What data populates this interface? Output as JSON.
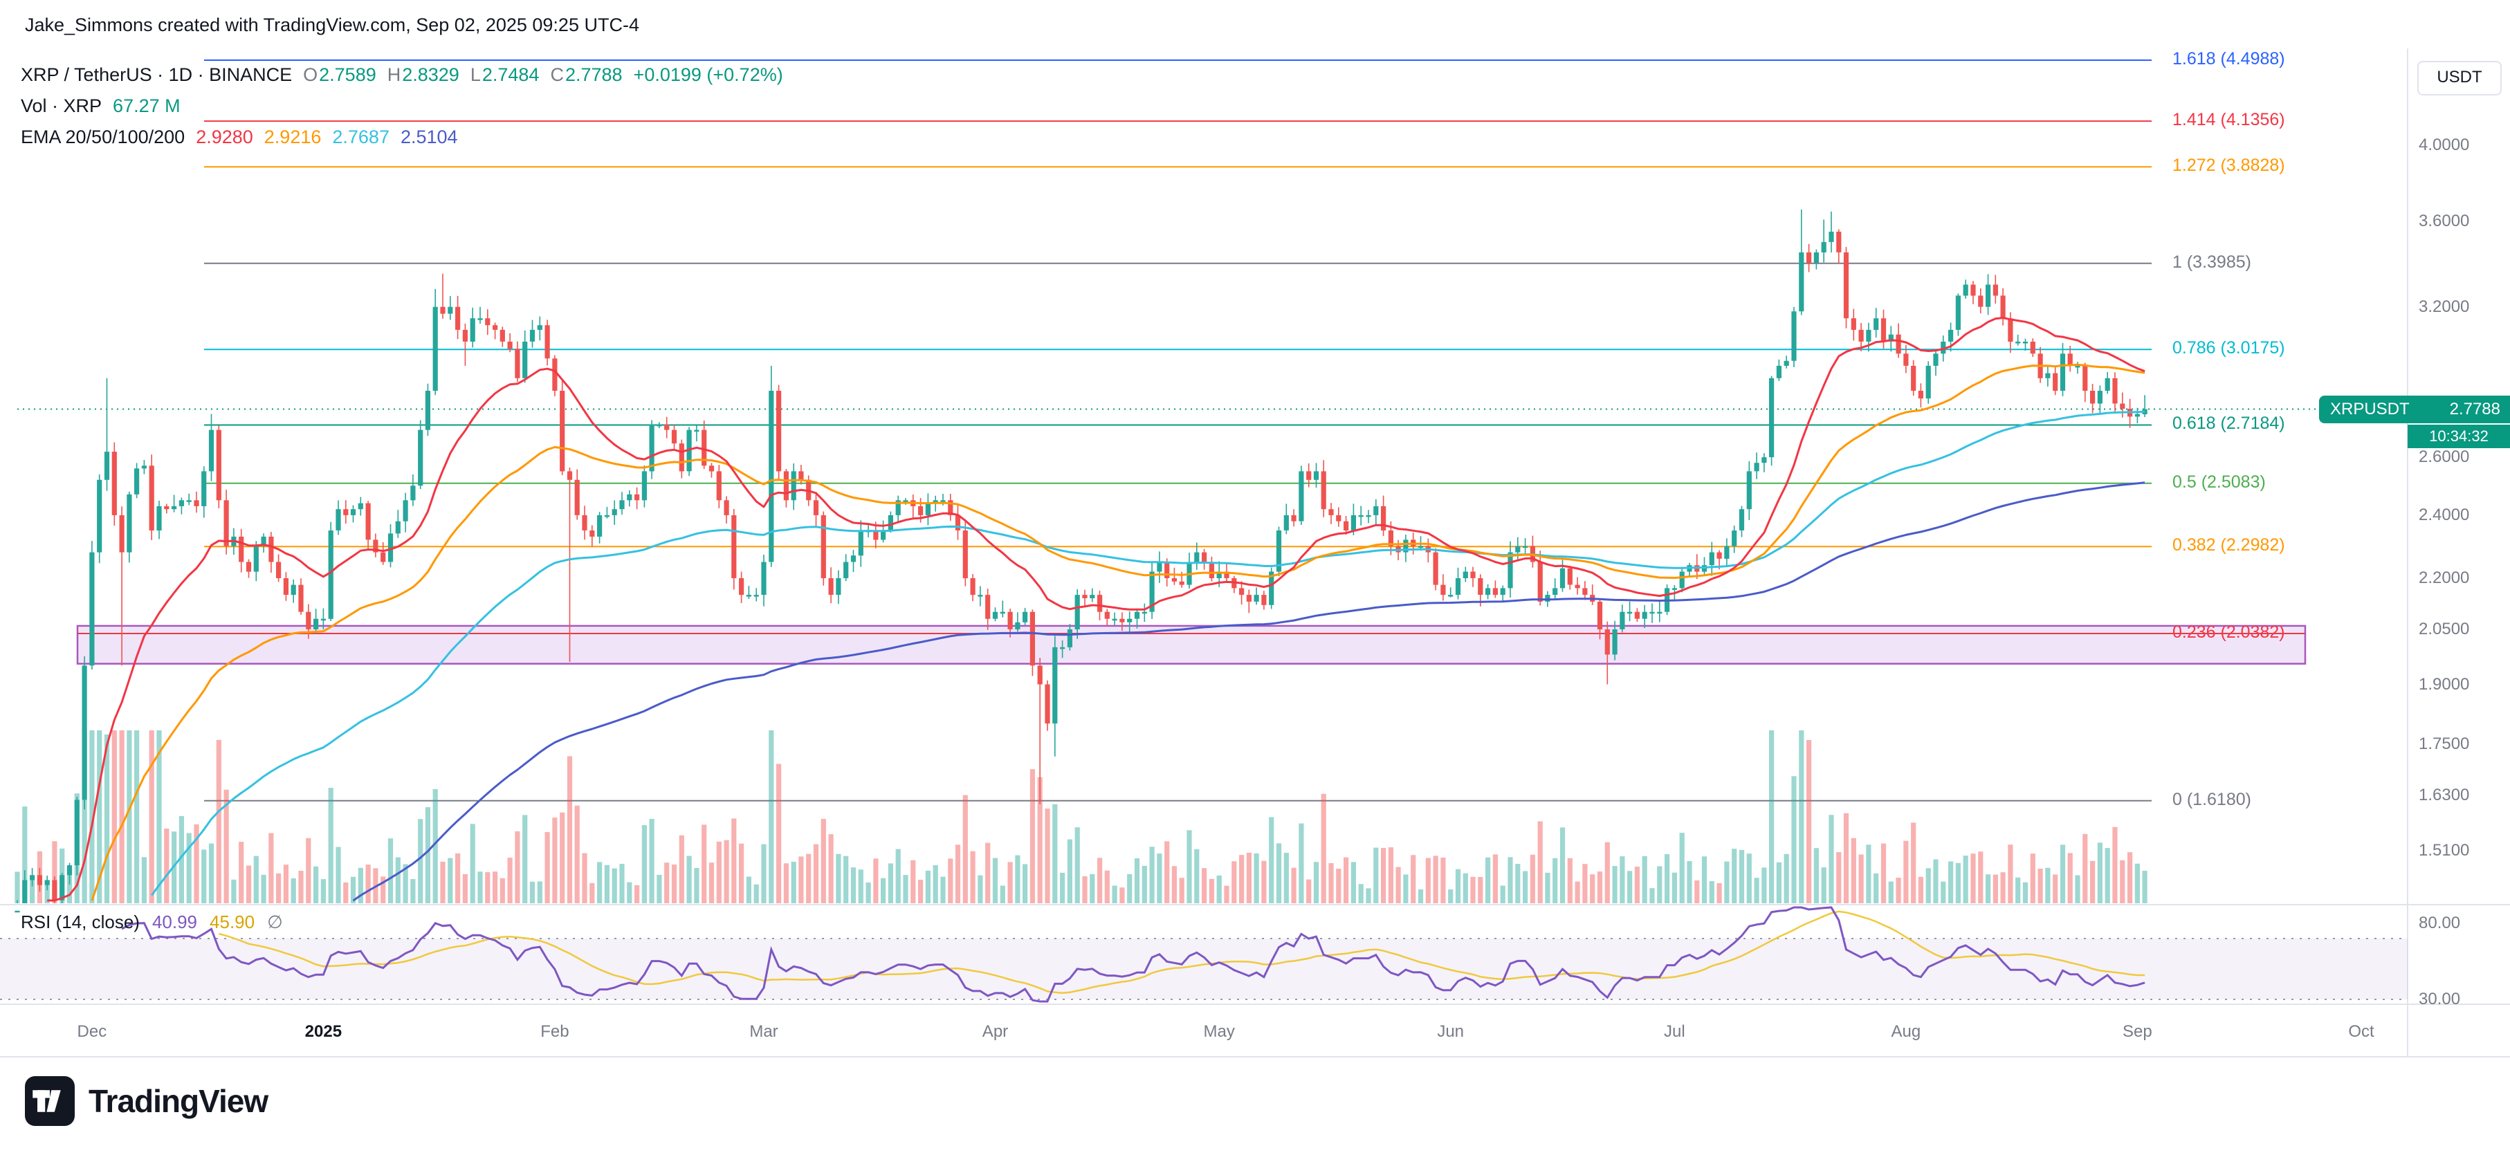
{
  "attribution": "Jake_Simmons created with TradingView.com, Sep 02, 2025 09:25 UTC-4",
  "legend": {
    "symbol": "XRP / TetherUS · 1D · BINANCE",
    "ohlc": {
      "o_label": "O",
      "o": "2.7589",
      "h_label": "H",
      "h": "2.8329",
      "l_label": "L",
      "l": "2.7484",
      "c_label": "C",
      "c": "2.7788",
      "change": "+0.0199 (+0.72%)",
      "value_color": "#089981"
    },
    "volume": {
      "label": "Vol · XRP",
      "value": "67.27 M",
      "value_color": "#089981"
    },
    "ema": {
      "label": "EMA 20/50/100/200",
      "values": [
        "2.9280",
        "2.9216",
        "2.7687",
        "2.5104"
      ],
      "colors": [
        "#f23645",
        "#ff9800",
        "#35c1e0",
        "#4a5bc9"
      ]
    }
  },
  "rsi_legend": {
    "title": "RSI (14, close)",
    "value": "40.99",
    "ma_value": "45.90",
    "empty": "∅",
    "value_color": "#7e57c2",
    "ma_color": "#d8a500"
  },
  "axis": {
    "currency": "USDT"
  },
  "price_badge": {
    "symbol": "XRPUSDT",
    "price": "2.7788",
    "countdown": "10:34:32",
    "color": "#089981"
  },
  "footer": {
    "brand": "TradingView"
  },
  "chart_data": {
    "type": "candlestick",
    "title": "XRP / TetherUS · 1D · BINANCE",
    "symbol": "XRPUSDT",
    "exchange": "BINANCE",
    "timeframe": "1D",
    "scale": "log",
    "start_date": "2024-11-21",
    "last_candle": {
      "open": 2.7589,
      "high": 2.8329,
      "low": 2.7484,
      "close": 2.7788,
      "change": "+0.0199 (+0.72%)"
    },
    "volume_display": "67.27 M",
    "colors": {
      "up": "#26a69a",
      "down": "#ef5350",
      "vol_up": "rgba(38,166,154,0.45)",
      "vol_down": "rgba(239,83,80,0.45)"
    },
    "closes": [
      1.39,
      1.45,
      1.46,
      1.44,
      1.45,
      1.41,
      1.46,
      1.48,
      1.62,
      1.95,
      2.28,
      2.52,
      2.62,
      2.4,
      2.28,
      2.47,
      2.56,
      2.57,
      2.35,
      2.43,
      2.42,
      2.43,
      2.45,
      2.45,
      2.43,
      2.55,
      2.7,
      2.45,
      2.3,
      2.33,
      2.25,
      2.22,
      2.3,
      2.33,
      2.25,
      2.2,
      2.15,
      2.18,
      2.1,
      2.05,
      2.08,
      2.08,
      2.35,
      2.42,
      2.4,
      2.42,
      2.44,
      2.32,
      2.28,
      2.25,
      2.34,
      2.38,
      2.45,
      2.5,
      2.7,
      2.85,
      3.2,
      3.17,
      3.2,
      3.1,
      3.05,
      3.15,
      3.15,
      3.12,
      3.1,
      3.05,
      3.02,
      2.9,
      3.05,
      3.1,
      3.12,
      2.98,
      2.85,
      2.55,
      2.52,
      2.4,
      2.35,
      2.33,
      2.4,
      2.4,
      2.42,
      2.45,
      2.47,
      2.45,
      2.55,
      2.72,
      2.72,
      2.7,
      2.65,
      2.55,
      2.7,
      2.7,
      2.57,
      2.55,
      2.45,
      2.4,
      2.2,
      2.15,
      2.15,
      2.15,
      2.25,
      2.85,
      2.55,
      2.45,
      2.55,
      2.52,
      2.45,
      2.4,
      2.2,
      2.15,
      2.2,
      2.25,
      2.27,
      2.35,
      2.35,
      2.32,
      2.35,
      2.4,
      2.45,
      2.45,
      2.43,
      2.4,
      2.44,
      2.45,
      2.45,
      2.4,
      2.35,
      2.2,
      2.15,
      2.15,
      2.08,
      2.1,
      2.1,
      2.05,
      2.07,
      2.1,
      1.95,
      1.9,
      1.8,
      2.0,
      2.0,
      2.05,
      2.15,
      2.14,
      2.15,
      2.1,
      2.08,
      2.08,
      2.07,
      2.08,
      2.1,
      2.1,
      2.22,
      2.25,
      2.2,
      2.19,
      2.18,
      2.25,
      2.28,
      2.25,
      2.2,
      2.22,
      2.2,
      2.17,
      2.15,
      2.13,
      2.15,
      2.12,
      2.22,
      2.35,
      2.4,
      2.38,
      2.55,
      2.52,
      2.55,
      2.42,
      2.4,
      2.38,
      2.35,
      2.4,
      2.4,
      2.4,
      2.43,
      2.35,
      2.3,
      2.28,
      2.32,
      2.3,
      2.3,
      2.28,
      2.18,
      2.15,
      2.15,
      2.2,
      2.22,
      2.2,
      2.15,
      2.17,
      2.15,
      2.17,
      2.28,
      2.3,
      2.3,
      2.25,
      2.13,
      2.15,
      2.17,
      2.23,
      2.18,
      2.17,
      2.15,
      2.13,
      2.05,
      1.98,
      2.05,
      2.1,
      2.1,
      2.08,
      2.1,
      2.1,
      2.1,
      2.17,
      2.17,
      2.22,
      2.24,
      2.22,
      2.24,
      2.28,
      2.26,
      2.3,
      2.35,
      2.42,
      2.55,
      2.58,
      2.6,
      2.9,
      2.95,
      2.97,
      3.18,
      3.45,
      3.4,
      3.45,
      3.5,
      3.55,
      3.45,
      3.15,
      3.1,
      3.05,
      3.1,
      3.15,
      3.05,
      3.08,
      3.0,
      2.95,
      2.85,
      2.82,
      2.95,
      3.0,
      3.05,
      3.1,
      3.25,
      3.3,
      3.25,
      3.2,
      3.3,
      3.25,
      3.15,
      3.05,
      3.05,
      3.05,
      3.0,
      2.9,
      2.92,
      2.85,
      3.0,
      2.95,
      2.95,
      2.85,
      2.8,
      2.85,
      2.9,
      2.8,
      2.78,
      2.75,
      2.76,
      2.7788
    ],
    "wick_overrides": {
      "12": {
        "h": 2.9
      },
      "14": {
        "l": 1.95
      },
      "26": {
        "h": 2.76
      },
      "56": {
        "h": 3.28
      },
      "57": {
        "h": 3.35
      },
      "60": {
        "l": 2.95
      },
      "74": {
        "l": 1.96
      },
      "101": {
        "h": 2.95
      },
      "137": {
        "l": 1.61
      },
      "139": {
        "l": 1.72
      },
      "213": {
        "l": 1.9
      },
      "239": {
        "h": 3.66
      },
      "242": {
        "h": 3.61
      },
      "243": {
        "h": 3.65
      },
      "285": {
        "o": 2.7589,
        "h": 2.8329,
        "l": 2.7484,
        "c": 2.7788
      }
    },
    "volume_spikes": [
      9,
      10,
      11,
      12,
      13,
      14,
      74,
      101,
      137,
      239,
      240
    ],
    "emas": [
      {
        "period": 20,
        "color": "#f23645",
        "last": 2.928
      },
      {
        "period": 50,
        "color": "#ff9800",
        "last": 2.9216
      },
      {
        "period": 100,
        "color": "#35c1e0",
        "last": 2.7687
      },
      {
        "period": 200,
        "color": "#4a5bc9",
        "last": 2.5104
      }
    ],
    "fib_levels": [
      {
        "level": "1.618",
        "price": 4.4988,
        "color": "#2962ff"
      },
      {
        "level": "1.414",
        "price": 4.1356,
        "color": "#f23645"
      },
      {
        "level": "1.272",
        "price": 3.8828,
        "color": "#ff9800"
      },
      {
        "level": "1",
        "price": 3.3985,
        "color": "#787b86"
      },
      {
        "level": "0.786",
        "price": 3.0175,
        "color": "#00bcd4"
      },
      {
        "level": "0.618",
        "price": 2.7184,
        "color": "#089981"
      },
      {
        "level": "0.5",
        "price": 2.5083,
        "color": "#4caf50"
      },
      {
        "level": "0.382",
        "price": 2.2982,
        "color": "#ff9800"
      },
      {
        "level": "0.236",
        "price": 2.0382,
        "color": "#f23645"
      },
      {
        "level": "0",
        "price": 1.618,
        "color": "#787b86"
      }
    ],
    "support_zone": {
      "top": 2.06,
      "bottom": 1.955,
      "fill": "rgba(164,89,209,0.16)",
      "border": "rgba(142,36,170,0.75)"
    },
    "price_line": {
      "price": 2.7788,
      "color": "#089981"
    },
    "price_ticks": [
      {
        "value": 4.0,
        "label": "4.0000"
      },
      {
        "value": 3.6,
        "label": "3.6000"
      },
      {
        "value": 3.2,
        "label": "3.2000"
      },
      {
        "value": 2.6,
        "label": "2.6000"
      },
      {
        "value": 2.4,
        "label": "2.4000"
      },
      {
        "value": 2.2,
        "label": "2.2000"
      },
      {
        "value": 2.05,
        "label": "2.0500"
      },
      {
        "value": 1.9,
        "label": "1.9000"
      },
      {
        "value": 1.75,
        "label": "1.7500"
      },
      {
        "value": 1.63,
        "label": "1.6300"
      },
      {
        "value": 1.51,
        "label": "1.5100"
      }
    ],
    "rsi": {
      "period": 14,
      "last": 40.99,
      "ma_last": 45.9,
      "upper": 70,
      "lower": 30,
      "line_color": "#7e57c2",
      "ma_color": "#f0c93c",
      "fill": "rgba(126,87,194,0.08)",
      "ticks": [
        {
          "value": 80,
          "label": "80.00"
        },
        {
          "value": 30,
          "label": "30.00"
        }
      ]
    },
    "time_labels": [
      {
        "label": "Dec",
        "day": 10,
        "bold": false
      },
      {
        "label": "2025",
        "day": 41,
        "bold": true
      },
      {
        "label": "Feb",
        "day": 72,
        "bold": false
      },
      {
        "label": "Mar",
        "day": 100,
        "bold": false
      },
      {
        "label": "Apr",
        "day": 131,
        "bold": false
      },
      {
        "label": "May",
        "day": 161,
        "bold": false
      },
      {
        "label": "Jun",
        "day": 192,
        "bold": false
      },
      {
        "label": "Jul",
        "day": 222,
        "bold": false
      },
      {
        "label": "Aug",
        "day": 253,
        "bold": false
      },
      {
        "label": "Sep",
        "day": 284,
        "bold": false
      },
      {
        "label": "Oct",
        "day": 314,
        "bold": false
      }
    ]
  }
}
